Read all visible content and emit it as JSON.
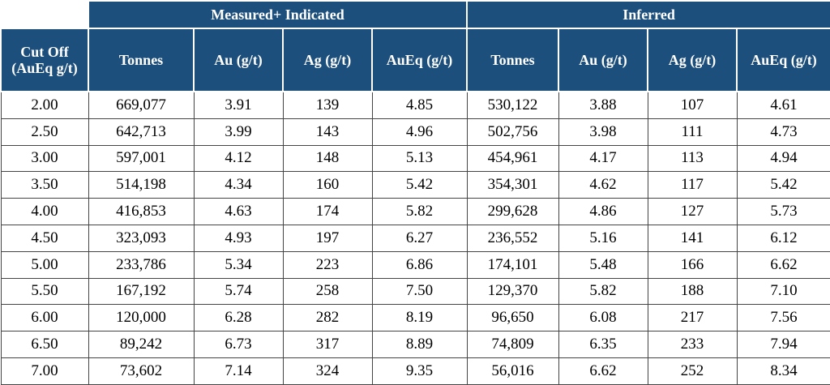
{
  "table": {
    "groups": [
      "Measured+ Indicated",
      "Inferred"
    ],
    "columns": [
      "Cut Off (AuEq g/t)",
      "Tonnes",
      "Au (g/t)",
      "Ag (g/t)",
      "AuEq (g/t)",
      "Tonnes",
      "Au (g/t)",
      "Ag (g/t)",
      "AuEq (g/t)"
    ],
    "rows": [
      [
        "2.00",
        "669,077",
        "3.91",
        "139",
        "4.85",
        "530,122",
        "3.88",
        "107",
        "4.61"
      ],
      [
        "2.50",
        "642,713",
        "3.99",
        "143",
        "4.96",
        "502,756",
        "3.98",
        "111",
        "4.73"
      ],
      [
        "3.00",
        "597,001",
        "4.12",
        "148",
        "5.13",
        "454,961",
        "4.17",
        "113",
        "4.94"
      ],
      [
        "3.50",
        "514,198",
        "4.34",
        "160",
        "5.42",
        "354,301",
        "4.62",
        "117",
        "5.42"
      ],
      [
        "4.00",
        "416,853",
        "4.63",
        "174",
        "5.82",
        "299,628",
        "4.86",
        "127",
        "5.73"
      ],
      [
        "4.50",
        "323,093",
        "4.93",
        "197",
        "6.27",
        "236,552",
        "5.16",
        "141",
        "6.12"
      ],
      [
        "5.00",
        "233,786",
        "5.34",
        "223",
        "6.86",
        "174,101",
        "5.48",
        "166",
        "6.62"
      ],
      [
        "5.50",
        "167,192",
        "5.74",
        "258",
        "7.50",
        "129,370",
        "5.82",
        "188",
        "7.10"
      ],
      [
        "6.00",
        "120,000",
        "6.28",
        "282",
        "8.19",
        "96,650",
        "6.08",
        "217",
        "7.56"
      ],
      [
        "6.50",
        "89,242",
        "6.73",
        "317",
        "8.89",
        "74,809",
        "6.35",
        "233",
        "7.94"
      ],
      [
        "7.00",
        "73,602",
        "7.14",
        "324",
        "9.35",
        "56,016",
        "6.62",
        "252",
        "8.34"
      ]
    ]
  }
}
